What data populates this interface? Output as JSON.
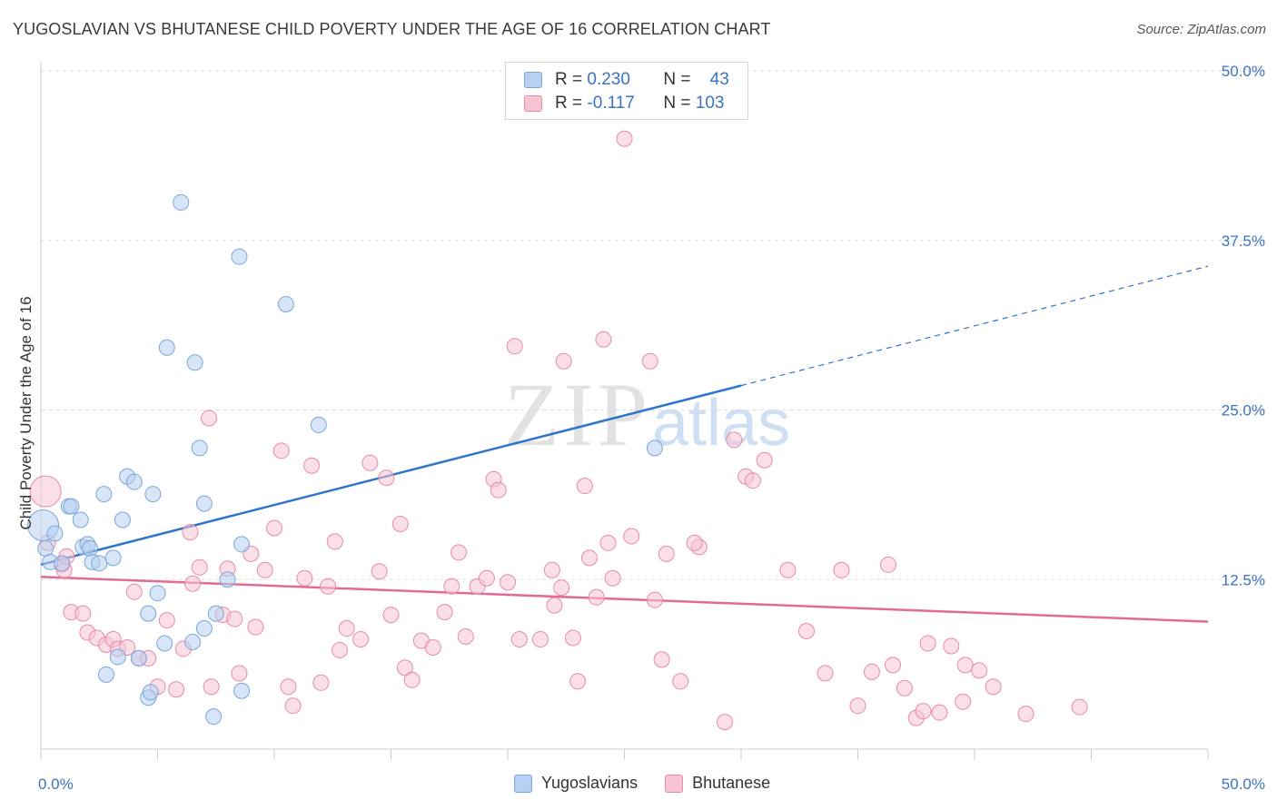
{
  "title": "YUGOSLAVIAN VS BHUTANESE CHILD POVERTY UNDER THE AGE OF 16 CORRELATION CHART",
  "source": "Source: ZipAtlas.com",
  "watermark": {
    "zip": "ZIP",
    "atlas": "atlas"
  },
  "colors": {
    "blue_fill": "#b7d0f0",
    "blue_stroke": "#7aa6dd",
    "blue_line": "#2f74cc",
    "pink_fill": "#f7c4d3",
    "pink_stroke": "#e88aa8",
    "pink_line": "#e26a96",
    "grid": "#dddddd",
    "tick_text": "#3b73c4"
  },
  "legend": {
    "rows": [
      {
        "name": "Yugoslavians",
        "r_label": "R =",
        "r_value": "0.230",
        "n_label": "N =",
        "n_value": "43"
      },
      {
        "name": "Bhutanese",
        "r_label": "R =",
        "r_value": "-0.117",
        "n_label": "N =",
        "n_value": "103"
      }
    ]
  },
  "chart_data": {
    "type": "scatter",
    "title": "YUGOSLAVIAN VS BHUTANESE CHILD POVERTY UNDER THE AGE OF 16 CORRELATION CHART",
    "xlabel": "",
    "ylabel": "Child Poverty Under the Age of 16",
    "xlim": [
      0,
      50
    ],
    "ylim": [
      0,
      50
    ],
    "x_tick_labels": [
      "0.0%",
      "50.0%"
    ],
    "y_tick_labels": [
      "12.5%",
      "25.0%",
      "37.5%",
      "50.0%"
    ],
    "y_ticks": [
      12.5,
      25.0,
      37.5,
      50.0
    ],
    "x_ticks": [
      0,
      5,
      10,
      15,
      20,
      25,
      30,
      35,
      40,
      45,
      50
    ],
    "grid": true,
    "legend_position": "bottom-center",
    "series": [
      {
        "name": "Yugoslavians",
        "r": 0.23,
        "n": 43,
        "trend": {
          "x0": 0,
          "y0": 13.6,
          "x1": 30,
          "y1": 26.8,
          "dashed_to_x": 50,
          "dashed_to_y": 35.6
        },
        "points": [
          [
            0.1,
            16.5
          ],
          [
            0.2,
            14.8
          ],
          [
            0.4,
            13.8
          ],
          [
            0.6,
            15.9
          ],
          [
            0.9,
            13.7
          ],
          [
            1.2,
            17.9
          ],
          [
            1.3,
            17.9
          ],
          [
            1.7,
            16.9
          ],
          [
            1.8,
            14.9
          ],
          [
            2.0,
            15.1
          ],
          [
            2.1,
            14.8
          ],
          [
            2.2,
            13.8
          ],
          [
            2.5,
            13.7
          ],
          [
            2.7,
            18.8
          ],
          [
            3.1,
            14.1
          ],
          [
            3.5,
            16.9
          ],
          [
            3.7,
            20.1
          ],
          [
            4.0,
            19.7
          ],
          [
            4.2,
            6.7
          ],
          [
            4.6,
            10.0
          ],
          [
            4.8,
            18.8
          ],
          [
            5.0,
            11.5
          ],
          [
            5.3,
            7.8
          ],
          [
            5.4,
            29.6
          ],
          [
            6.0,
            40.3
          ],
          [
            6.5,
            7.9
          ],
          [
            6.6,
            28.5
          ],
          [
            6.8,
            22.2
          ],
          [
            7.0,
            18.1
          ],
          [
            7.0,
            8.9
          ],
          [
            7.5,
            10.0
          ],
          [
            8.0,
            12.5
          ],
          [
            8.5,
            36.3
          ],
          [
            8.6,
            15.1
          ],
          [
            8.6,
            4.3
          ],
          [
            10.5,
            32.8
          ],
          [
            11.9,
            23.9
          ],
          [
            2.8,
            5.5
          ],
          [
            3.3,
            6.8
          ],
          [
            4.6,
            3.8
          ],
          [
            4.7,
            4.2
          ],
          [
            7.4,
            2.4
          ],
          [
            26.3,
            22.2
          ]
        ]
      },
      {
        "name": "Bhutanese",
        "r": -0.117,
        "n": 103,
        "trend": {
          "x0": 0,
          "y0": 12.7,
          "x1": 50,
          "y1": 9.4
        },
        "points": [
          [
            0.2,
            19.0
          ],
          [
            0.3,
            15.2
          ],
          [
            0.9,
            13.6
          ],
          [
            1.0,
            13.2
          ],
          [
            1.1,
            14.2
          ],
          [
            1.3,
            10.1
          ],
          [
            1.8,
            10.0
          ],
          [
            2.0,
            8.6
          ],
          [
            2.4,
            8.2
          ],
          [
            2.8,
            7.7
          ],
          [
            3.1,
            8.1
          ],
          [
            3.3,
            7.4
          ],
          [
            3.7,
            7.5
          ],
          [
            4.0,
            11.6
          ],
          [
            4.2,
            6.7
          ],
          [
            4.6,
            6.7
          ],
          [
            5.0,
            4.6
          ],
          [
            5.4,
            9.5
          ],
          [
            5.8,
            4.4
          ],
          [
            6.1,
            7.4
          ],
          [
            6.4,
            16.0
          ],
          [
            6.5,
            12.2
          ],
          [
            6.8,
            13.4
          ],
          [
            7.2,
            24.4
          ],
          [
            7.3,
            4.6
          ],
          [
            7.8,
            9.9
          ],
          [
            8.0,
            13.3
          ],
          [
            8.3,
            9.6
          ],
          [
            8.5,
            5.6
          ],
          [
            9.0,
            14.4
          ],
          [
            9.2,
            9.0
          ],
          [
            9.6,
            13.2
          ],
          [
            10.0,
            16.3
          ],
          [
            10.3,
            22.0
          ],
          [
            10.6,
            4.6
          ],
          [
            10.8,
            3.2
          ],
          [
            11.3,
            12.6
          ],
          [
            11.6,
            20.9
          ],
          [
            12.0,
            4.9
          ],
          [
            12.3,
            12.0
          ],
          [
            12.6,
            15.3
          ],
          [
            12.8,
            7.3
          ],
          [
            13.1,
            8.9
          ],
          [
            13.7,
            8.1
          ],
          [
            14.1,
            21.1
          ],
          [
            14.5,
            13.1
          ],
          [
            14.8,
            20.0
          ],
          [
            15.0,
            9.9
          ],
          [
            15.4,
            16.6
          ],
          [
            15.6,
            6.0
          ],
          [
            15.9,
            5.1
          ],
          [
            16.3,
            8.0
          ],
          [
            16.8,
            7.5
          ],
          [
            17.3,
            10.1
          ],
          [
            17.6,
            12.0
          ],
          [
            17.9,
            14.5
          ],
          [
            18.2,
            8.3
          ],
          [
            18.7,
            12.0
          ],
          [
            19.1,
            12.6
          ],
          [
            19.4,
            19.9
          ],
          [
            19.6,
            19.1
          ],
          [
            20.0,
            12.3
          ],
          [
            20.3,
            29.7
          ],
          [
            20.5,
            8.1
          ],
          [
            21.4,
            8.1
          ],
          [
            21.9,
            13.2
          ],
          [
            22.0,
            10.6
          ],
          [
            22.3,
            11.9
          ],
          [
            22.8,
            8.2
          ],
          [
            23.0,
            5.0
          ],
          [
            23.3,
            19.4
          ],
          [
            23.5,
            14.1
          ],
          [
            23.8,
            11.2
          ],
          [
            24.3,
            15.2
          ],
          [
            24.5,
            12.6
          ],
          [
            25.0,
            45.0
          ],
          [
            25.3,
            15.7
          ],
          [
            26.3,
            11.0
          ],
          [
            26.6,
            6.6
          ],
          [
            26.8,
            14.4
          ],
          [
            27.4,
            5.0
          ],
          [
            28.2,
            14.9
          ],
          [
            29.3,
            2.0
          ],
          [
            29.7,
            22.8
          ],
          [
            30.2,
            20.1
          ],
          [
            30.5,
            19.8
          ],
          [
            31.0,
            21.3
          ],
          [
            32.0,
            13.2
          ],
          [
            32.8,
            8.7
          ],
          [
            33.6,
            5.6
          ],
          [
            34.3,
            13.2
          ],
          [
            35.0,
            3.2
          ],
          [
            35.6,
            5.7
          ],
          [
            36.3,
            13.6
          ],
          [
            36.5,
            6.2
          ],
          [
            37.0,
            4.5
          ],
          [
            37.5,
            2.3
          ],
          [
            37.8,
            2.8
          ],
          [
            38.0,
            7.8
          ],
          [
            38.5,
            2.7
          ],
          [
            39.0,
            7.6
          ],
          [
            39.5,
            3.5
          ],
          [
            39.6,
            6.2
          ]
        ]
      }
    ]
  },
  "extra_pink_points": [
    [
      40.2,
      5.8
    ],
    [
      40.8,
      4.6
    ],
    [
      42.2,
      2.6
    ],
    [
      44.5,
      3.1
    ],
    [
      28.0,
      15.2
    ],
    [
      26.1,
      28.6
    ],
    [
      24.1,
      30.2
    ],
    [
      22.4,
      28.6
    ]
  ]
}
